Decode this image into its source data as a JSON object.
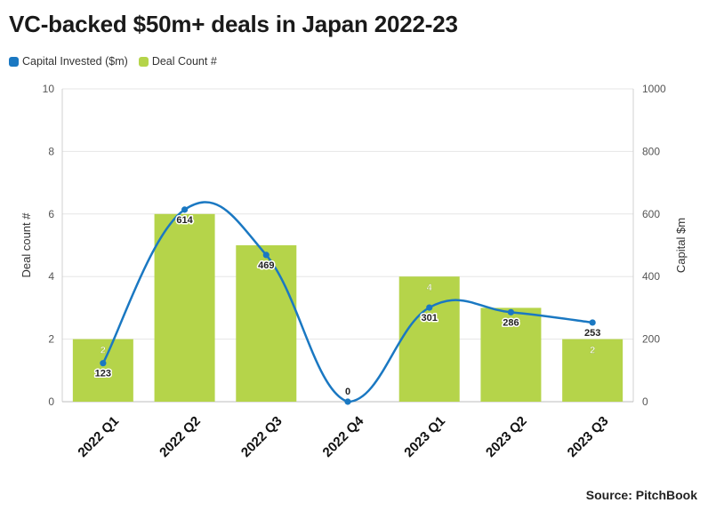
{
  "title": "VC-backed $50m+ deals in Japan 2022-23",
  "source": "Source: PitchBook",
  "legend": [
    {
      "label": "Capital Invested ($m)",
      "color": "#1a78c2"
    },
    {
      "label": "Deal Count #",
      "color": "#b5d44a"
    }
  ],
  "chart_data": {
    "type": "bar",
    "title": "VC-backed $50m+ deals in Japan 2022-23",
    "categories": [
      "2022 Q1",
      "2022 Q2",
      "2022 Q3",
      "2022 Q4",
      "2023 Q1",
      "2023 Q2",
      "2023 Q3"
    ],
    "series": [
      {
        "name": "Deal Count #",
        "type": "bar",
        "axis": "left",
        "color": "#b5d44a",
        "values": [
          2,
          6,
          5,
          0,
          4,
          3,
          2
        ]
      },
      {
        "name": "Capital Invested ($m)",
        "type": "line",
        "axis": "right",
        "color": "#1a78c2",
        "values": [
          123,
          614,
          469,
          0,
          301,
          286,
          253
        ]
      }
    ],
    "bar_labels": [
      "2",
      "",
      "",
      "",
      "4",
      "",
      "2"
    ],
    "line_labels": [
      "123",
      "614",
      "469",
      "0",
      "301",
      "286",
      "253"
    ],
    "ylabel": "Deal count #",
    "ylabel_right": "Capital $m",
    "ylim": [
      0,
      10
    ],
    "ylim_right": [
      0,
      1000
    ],
    "yticks": [
      0,
      2,
      4,
      6,
      8,
      10
    ],
    "yticks_right": [
      0,
      200,
      400,
      600,
      800,
      1000
    ],
    "grid": true
  }
}
